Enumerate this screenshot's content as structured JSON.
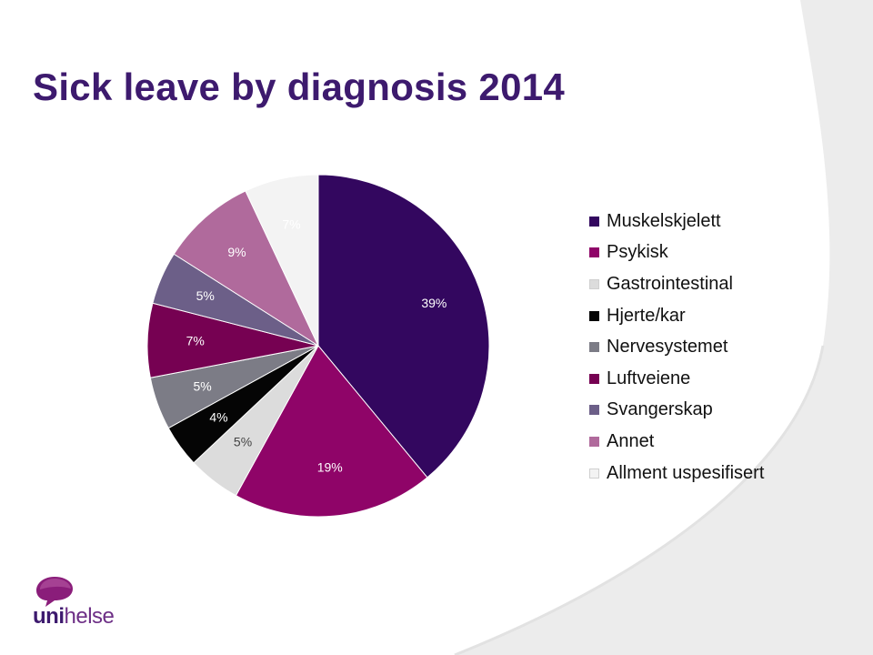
{
  "slide": {
    "title": "Sick leave by diagnosis 2014"
  },
  "logo": {
    "part1": "uni",
    "part2": "helse"
  },
  "colors": {
    "title": "#3d1a6e",
    "background_gray": "#ececec"
  },
  "chart_data": {
    "type": "pie",
    "title": "",
    "legend_position": "right",
    "slices": [
      {
        "label": "Muskelskjelett",
        "value": 39,
        "display": "39%",
        "color": "#33075f",
        "text_color": "#ffffff"
      },
      {
        "label": "Psykisk",
        "value": 19,
        "display": "19%",
        "color": "#8f0468",
        "text_color": "#ffffff"
      },
      {
        "label": "Gastrointestinal",
        "value": 5,
        "display": "5%",
        "color": "#dcdcdc",
        "text_color": "#444444"
      },
      {
        "label": "Hjerte/kar",
        "value": 4,
        "display": "4%",
        "color": "#050505",
        "text_color": "#ffffff"
      },
      {
        "label": "Nervesystemet",
        "value": 5,
        "display": "5%",
        "color": "#7c7c86",
        "text_color": "#ffffff"
      },
      {
        "label": "Luftveiene",
        "value": 7,
        "display": "7%",
        "color": "#760152",
        "text_color": "#ffffff"
      },
      {
        "label": "Svangerskap",
        "value": 5,
        "display": "5%",
        "color": "#6c5f88",
        "text_color": "#ffffff"
      },
      {
        "label": "Annet",
        "value": 9,
        "display": "9%",
        "color": "#b06a9c",
        "text_color": "#ffffff"
      },
      {
        "label": "Allment uspesifisert",
        "value": 7,
        "display": "7%",
        "color": "#f3f3f3",
        "text_color": "#ffffff"
      }
    ]
  }
}
